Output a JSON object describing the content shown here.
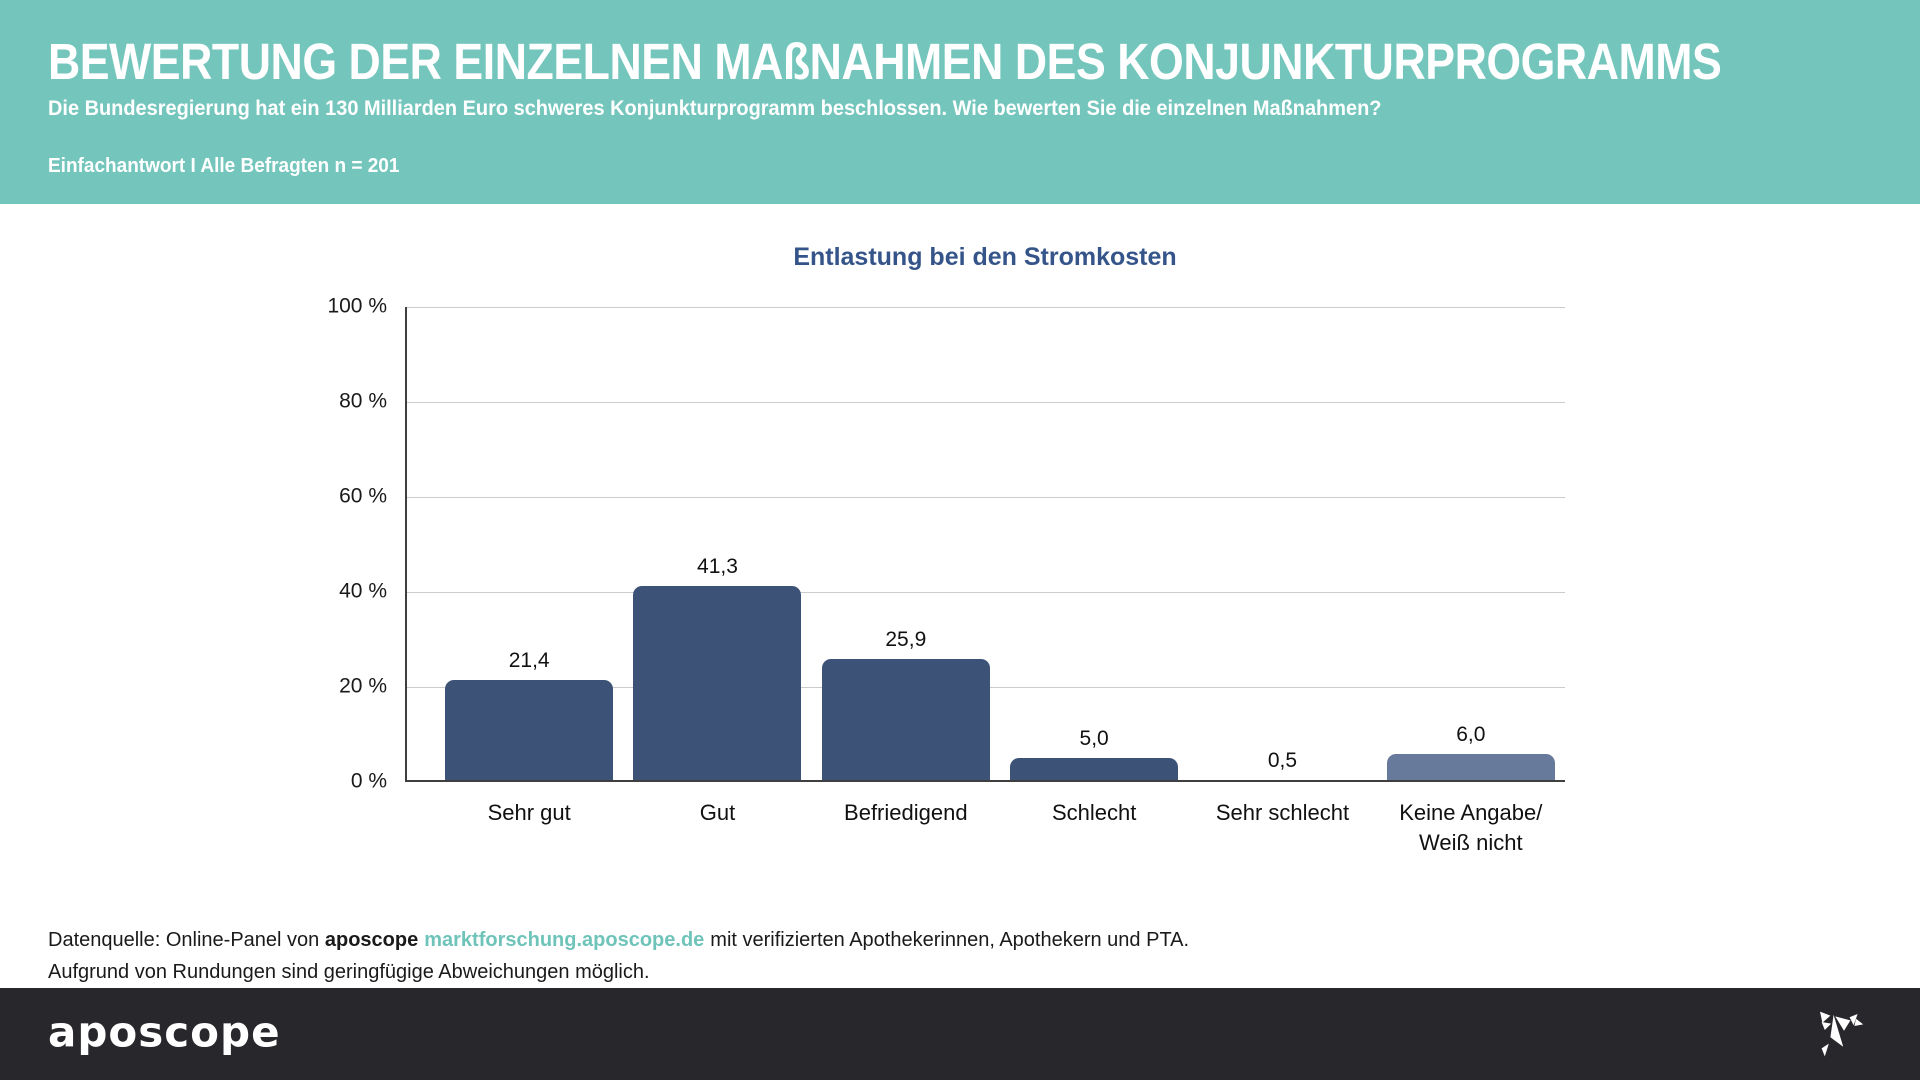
{
  "theme": {
    "teal": "#74C6BC",
    "title_navy": "#35548A",
    "grid": "#CBCBCB",
    "axis": "#3F3F3F",
    "dark_footer": "#28282C",
    "link_teal": "#6FC4BA"
  },
  "header": {
    "title": "BEWERTUNG DER EINZELNEN MAßNAHMEN DES KONJUNKTURPROGRAMMS",
    "subtitle": "Die Bundesregierung hat ein 130 Milliarden Euro schweres Konjunkturprogramm beschlossen. Wie bewerten Sie die einzelnen Maßnahmen?",
    "sample_note": "Einfachantwort I Alle Befragten n = 201"
  },
  "chart_data": {
    "type": "bar",
    "title": "Entlastung bei den Stromkosten",
    "categories": [
      "Sehr gut",
      "Gut",
      "Befriedigend",
      "Schlecht",
      "Sehr schlecht",
      "Keine Angabe/\nWeiß nicht"
    ],
    "values": [
      21.4,
      41.3,
      25.9,
      5.0,
      0.5,
      6.0
    ],
    "value_labels": [
      "21,4",
      "41,3",
      "25,9",
      "5,0",
      "0,5",
      "6,0"
    ],
    "bar_colors": [
      "#3C5277",
      "#3C5277",
      "#3C5277",
      "#3C5277",
      "#3C5277",
      "#687A9C"
    ],
    "ylim": [
      0,
      100
    ],
    "yticks": [
      "100 %",
      "80 %",
      "60 %",
      "40 %",
      "20 %",
      "0 %"
    ],
    "grid": true,
    "legend": null,
    "xlabel": "",
    "ylabel": ""
  },
  "source": {
    "prefix": "Datenquelle: Online-Panel von",
    "brand": "aposcope",
    "link": "marktforschung.aposcope.de",
    "suffix": "mit verifizierten Apothekerinnen, Apothekern und PTA.",
    "line2": "Aufgrund von Rundungen sind geringfügige Abweichungen möglich."
  },
  "footer": {
    "logo_text": "aposcope",
    "bird_icon": "origami-bird-icon"
  }
}
